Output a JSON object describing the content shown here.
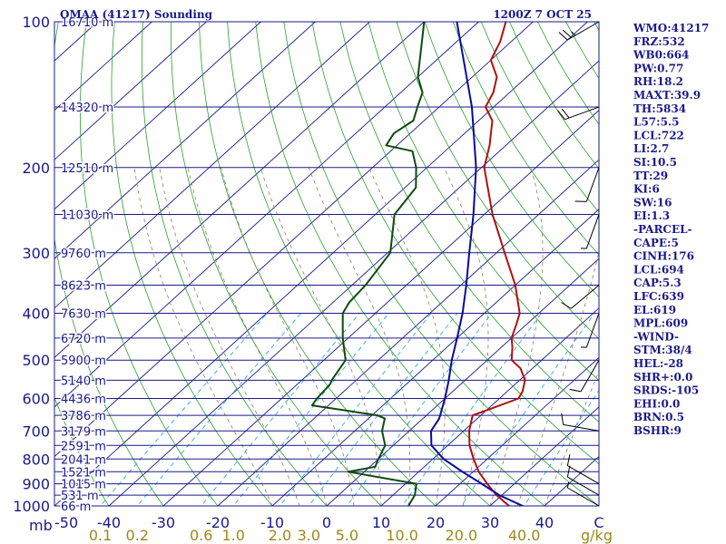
{
  "chart_data": {
    "type": "line",
    "title": "OMAA (41217) Sounding",
    "time": "1200Z  7 OCT 25",
    "pressure_unit": "mb",
    "mixing_ratio_unit": "g/kg",
    "pressure_ticks": [
      {
        "p": 100,
        "label": "100"
      },
      {
        "p": 200,
        "label": "200"
      },
      {
        "p": 300,
        "label": "300"
      },
      {
        "p": 400,
        "label": "400"
      },
      {
        "p": 500,
        "label": "500"
      },
      {
        "p": 600,
        "label": "600"
      },
      {
        "p": 700,
        "label": "700"
      },
      {
        "p": 800,
        "label": "800"
      },
      {
        "p": 900,
        "label": "900"
      },
      {
        "p": 1000,
        "label": "1000"
      }
    ],
    "height_labels": [
      {
        "p": 100,
        "label": "16710 m"
      },
      {
        "p": 150,
        "label": "14320 m"
      },
      {
        "p": 200,
        "label": "12510 m"
      },
      {
        "p": 250,
        "label": "11030 m"
      },
      {
        "p": 300,
        "label": "9760 m"
      },
      {
        "p": 350,
        "label": "8623 m"
      },
      {
        "p": 400,
        "label": "7630 m"
      },
      {
        "p": 450,
        "label": "6720 m"
      },
      {
        "p": 500,
        "label": "5900 m"
      },
      {
        "p": 550,
        "label": "5140 m"
      },
      {
        "p": 600,
        "label": "4436 m"
      },
      {
        "p": 650,
        "label": "3786 m"
      },
      {
        "p": 700,
        "label": "3179 m"
      },
      {
        "p": 750,
        "label": "2591 m"
      },
      {
        "p": 800,
        "label": "2041 m"
      },
      {
        "p": 850,
        "label": "1521 m"
      },
      {
        "p": 900,
        "label": "1015 m"
      },
      {
        "p": 950,
        "label": "531 m"
      },
      {
        "p": 1000,
        "label": "66 m"
      }
    ],
    "temperature_ticks": [
      {
        "t": -50,
        "label": "-50"
      },
      {
        "t": -40,
        "label": "-40"
      },
      {
        "t": -30,
        "label": "-30"
      },
      {
        "t": -20,
        "label": "-20"
      },
      {
        "t": -10,
        "label": "-10"
      },
      {
        "t": 0,
        "label": "0"
      },
      {
        "t": 10,
        "label": "10"
      },
      {
        "t": 20,
        "label": "20"
      },
      {
        "t": 30,
        "label": "30"
      },
      {
        "t": 40,
        "label": "40"
      },
      {
        "t": 50,
        "label": "C"
      }
    ],
    "mixing_ratio_labels": [
      {
        "w": 0.1,
        "label": "0.1"
      },
      {
        "w": 0.2,
        "label": "0.2"
      },
      {
        "w": 0.6,
        "label": "0.6"
      },
      {
        "w": 1.0,
        "label": "1.0"
      },
      {
        "w": 2.0,
        "label": "2.0"
      },
      {
        "w": 3.0,
        "label": "3.0"
      },
      {
        "w": 5.0,
        "label": "5.0"
      },
      {
        "w": 10.0,
        "label": "10.0"
      },
      {
        "w": 20.0,
        "label": "20.0"
      },
      {
        "w": 40.0,
        "label": "40.0"
      }
    ],
    "series": [
      {
        "name": "Temperature",
        "color": "#b01010",
        "points": [
          [
            1000,
            33.5
          ],
          [
            950,
            29.0
          ],
          [
            900,
            25.0
          ],
          [
            850,
            21.0
          ],
          [
            800,
            17.5
          ],
          [
            750,
            14.0
          ],
          [
            700,
            11.0
          ],
          [
            660,
            9.0
          ],
          [
            650,
            8.5
          ],
          [
            630,
            10.5
          ],
          [
            600,
            13.5
          ],
          [
            580,
            12.8
          ],
          [
            550,
            11.0
          ],
          [
            520,
            7.8
          ],
          [
            500,
            4.5
          ],
          [
            470,
            2.0
          ],
          [
            450,
            0.0
          ],
          [
            420,
            -2.0
          ],
          [
            400,
            -3.5
          ],
          [
            380,
            -6.0
          ],
          [
            350,
            -10.0
          ],
          [
            300,
            -18.5
          ],
          [
            250,
            -28.5
          ],
          [
            200,
            -39.5
          ],
          [
            180,
            -43.0
          ],
          [
            160,
            -47.5
          ],
          [
            150,
            -51.5
          ],
          [
            140,
            -53.0
          ],
          [
            130,
            -55.5
          ],
          [
            120,
            -60.0
          ],
          [
            110,
            -62.0
          ],
          [
            100,
            -65.0
          ]
        ]
      },
      {
        "name": "Dewpoint",
        "color": "#0f4a0f",
        "points": [
          [
            1000,
            15.0
          ],
          [
            950,
            14.0
          ],
          [
            900,
            12.0
          ],
          [
            850,
            -3.0
          ],
          [
            830,
            1.0
          ],
          [
            800,
            0.0
          ],
          [
            750,
            -1.5
          ],
          [
            700,
            -5.0
          ],
          [
            660,
            -7.0
          ],
          [
            650,
            -9.0
          ],
          [
            620,
            -23.0
          ],
          [
            600,
            -23.5
          ],
          [
            560,
            -24.0
          ],
          [
            550,
            -24.5
          ],
          [
            500,
            -26.0
          ],
          [
            450,
            -31.0
          ],
          [
            400,
            -36.0
          ],
          [
            380,
            -37.0
          ],
          [
            350,
            -37.5
          ],
          [
            300,
            -39.5
          ],
          [
            250,
            -46.5
          ],
          [
            220,
            -48.0
          ],
          [
            200,
            -52.0
          ],
          [
            185,
            -56.0
          ],
          [
            180,
            -62.0
          ],
          [
            170,
            -63.0
          ],
          [
            160,
            -62.0
          ],
          [
            150,
            -64.0
          ],
          [
            140,
            -66.0
          ],
          [
            130,
            -70.0
          ],
          [
            100,
            -80.0
          ]
        ]
      },
      {
        "name": "Parcel path",
        "color": "#0a0a9a",
        "points": [
          [
            1000,
            36.0
          ],
          [
            950,
            29.5
          ],
          [
            900,
            24.0
          ],
          [
            850,
            18.0
          ],
          [
            800,
            12.0
          ],
          [
            750,
            7.0
          ],
          [
            700,
            4.0
          ],
          [
            660,
            3.0
          ],
          [
            600,
            0.0
          ],
          [
            550,
            -3.0
          ],
          [
            500,
            -6.5
          ],
          [
            450,
            -10.0
          ],
          [
            400,
            -14.0
          ],
          [
            350,
            -19.0
          ],
          [
            300,
            -25.0
          ],
          [
            250,
            -32.0
          ],
          [
            200,
            -41.0
          ],
          [
            150,
            -54.0
          ],
          [
            120,
            -65.0
          ],
          [
            100,
            -74.0
          ]
        ]
      }
    ],
    "winds": [
      {
        "p": 1000,
        "dir": 300,
        "spd": 5
      },
      {
        "p": 950,
        "dir": 300,
        "spd": 10
      },
      {
        "p": 900,
        "dir": 300,
        "spd": 10
      },
      {
        "p": 700,
        "dir": 280,
        "spd": 10
      },
      {
        "p": 500,
        "dir": 210,
        "spd": 10
      },
      {
        "p": 400,
        "dir": 200,
        "spd": 5
      },
      {
        "p": 350,
        "dir": 230,
        "spd": 10
      },
      {
        "p": 250,
        "dir": 200,
        "spd": 5
      },
      {
        "p": 200,
        "dir": 200,
        "spd": 10
      },
      {
        "p": 150,
        "dir": 250,
        "spd": 20
      },
      {
        "p": 100,
        "dir": 240,
        "spd": 25
      }
    ],
    "indices": [
      "WMO:41217",
      "FRZ:532",
      "WB0:664",
      "PW:0.77",
      "RH:18.2",
      "MAXT:39.9",
      "TH:5834",
      "L57:5.5",
      "LCL:722",
      "LI:2.7",
      "SI:10.5",
      "TT:29",
      "KI:6",
      "SW:16",
      "EI:1.3",
      "-PARCEL-",
      "CAPE:5",
      "CINH:176",
      "LCL:694",
      "CAP:5.3",
      "LFC:639",
      "EL:619",
      "MPL:609",
      "-WIND-",
      "STM:38/4",
      "HEL:-28",
      "SHR+:0.0",
      "SRDS:-105",
      "EHI:0.0",
      "BRN:0.5",
      "BSHR:9"
    ]
  }
}
